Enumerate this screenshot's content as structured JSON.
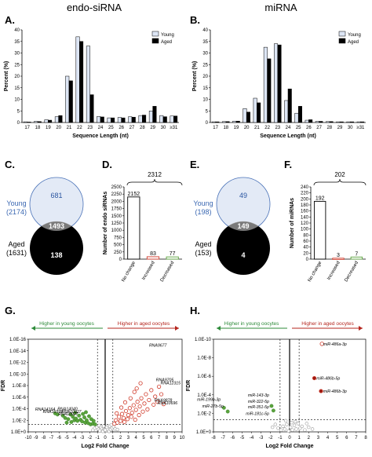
{
  "column_titles": {
    "left": "endo-siRNA",
    "right": "miRNA"
  },
  "panel_letters": {
    "A": "A.",
    "B": "B.",
    "C": "C.",
    "D": "D.",
    "E": "E.",
    "F": "F.",
    "G": "G.",
    "H": "H."
  },
  "colors": {
    "young": "#dde6f5",
    "aged": "#000000",
    "young_venn": "#e3eaf6",
    "overlap": "#7a7a7a",
    "increased": "#d03a2a",
    "decreased": "#5aa33c",
    "gray_points": "#9a9a9a",
    "young_arrow": "#2e8b3a",
    "aged_arrow": "#b5261e"
  },
  "chart_data": [
    {
      "id": "A",
      "type": "bar",
      "categories": [
        "17",
        "18",
        "19",
        "20",
        "21",
        "22",
        "23",
        "24",
        "25",
        "26",
        "27",
        "28",
        "29",
        "30",
        "≥31"
      ],
      "series": [
        {
          "name": "Young",
          "values": [
            0.3,
            0.5,
            1.2,
            2.5,
            20.0,
            37.0,
            33.0,
            2.6,
            2.0,
            2.2,
            2.5,
            3.0,
            5.0,
            3.0,
            2.8
          ]
        },
        {
          "name": "Aged",
          "values": [
            0.2,
            0.4,
            1.0,
            3.0,
            18.0,
            35.0,
            12.0,
            2.4,
            2.0,
            2.0,
            2.3,
            3.2,
            7.0,
            2.5,
            2.8
          ]
        }
      ],
      "xlabel": "Sequence Length (nt)",
      "ylabel": "Percent (%)",
      "yticks": [
        "0",
        "5",
        "10",
        "15",
        "20",
        "25",
        "30",
        "35",
        "40"
      ],
      "ylim": [
        0,
        40
      ],
      "legend": "top-right"
    },
    {
      "id": "B",
      "type": "bar",
      "categories": [
        "17",
        "18",
        "19",
        "20",
        "21",
        "22",
        "23",
        "24",
        "25",
        "26",
        "27",
        "28",
        "29",
        "30",
        "≥31"
      ],
      "series": [
        {
          "name": "Young",
          "values": [
            0.3,
            0.4,
            0.6,
            6.0,
            10.5,
            32.5,
            34.0,
            9.5,
            4.0,
            1.0,
            0.5,
            0.4,
            0.3,
            0.3,
            0.3
          ]
        },
        {
          "name": "Aged",
          "values": [
            0.3,
            0.4,
            0.6,
            4.5,
            8.5,
            27.5,
            33.5,
            14.5,
            7.0,
            1.2,
            0.5,
            0.4,
            0.3,
            0.3,
            0.3
          ]
        }
      ],
      "xlabel": "Sequence Length (nt)",
      "ylabel": "Percent (%)",
      "yticks": [
        "0",
        "5",
        "10",
        "15",
        "20",
        "25",
        "30",
        "35",
        "40"
      ],
      "ylim": [
        0,
        40
      ],
      "legend": "top-right"
    },
    {
      "id": "C",
      "type": "venn",
      "sets": [
        {
          "name": "Young",
          "count_label": "(2174)"
        },
        {
          "name": "Aged",
          "count_label": "(1631)"
        }
      ],
      "only_young": "681",
      "overlap": "1493",
      "only_aged": "138"
    },
    {
      "id": "D",
      "type": "bar",
      "categories": [
        "No change",
        "Increased",
        "Decreased"
      ],
      "values": [
        2152,
        83,
        77
      ],
      "value_labels": [
        "2152",
        "83",
        "77"
      ],
      "total_label": "2312",
      "ylabel": "Number of endo siRNAs",
      "yticks": [
        "0",
        "250",
        "500",
        "750",
        "1000",
        "1250",
        "1500",
        "1750",
        "2000",
        "2250",
        "2500"
      ],
      "ylim": [
        0,
        2500
      ]
    },
    {
      "id": "E",
      "type": "venn",
      "sets": [
        {
          "name": "Young",
          "count_label": "(198)"
        },
        {
          "name": "Aged",
          "count_label": "(153)"
        }
      ],
      "only_young": "49",
      "overlap": "149",
      "only_aged": "4"
    },
    {
      "id": "F",
      "type": "bar",
      "categories": [
        "No change",
        "Increased",
        "Decreased"
      ],
      "values": [
        192,
        3,
        7
      ],
      "value_labels": [
        "192",
        "3",
        "7"
      ],
      "total_label": "202",
      "ylabel": "Number of miRNAs",
      "yticks": [
        "0",
        "20",
        "40",
        "60",
        "80",
        "100",
        "120",
        "140",
        "160",
        "180",
        "200",
        "220",
        "240"
      ],
      "ylim": [
        0,
        240
      ]
    },
    {
      "id": "G",
      "type": "scatter",
      "xlabel": "Log2 Fold Change",
      "ylabel": "FDR",
      "left_arrow": "Higher in young oocytes",
      "right_arrow": "Higher in aged oocytes",
      "xlim": [
        -10,
        10
      ],
      "xticks": [
        "-10",
        "-9",
        "-8",
        "-7",
        "-6",
        "-5",
        "-4",
        "-3",
        "-2",
        "-1",
        "0",
        "1",
        "2",
        "3",
        "4",
        "5",
        "6",
        "7",
        "8",
        "9",
        "10"
      ],
      "ylim_neglog10": [
        0,
        16
      ],
      "yticks": [
        "1.0E+0",
        "1.0E-2",
        "1.0E-4",
        "1.0E-6",
        "1.0E-8",
        "1.0E-10",
        "1.0E-12",
        "1.0E-14",
        "1.0E-16"
      ],
      "annotations": [
        {
          "label": "RNA9677",
          "x": 5.3,
          "y": 15.0,
          "group": "aged"
        },
        {
          "label": "RNA9705",
          "x": 6.2,
          "y": 9.0,
          "group": "aged"
        },
        {
          "label": "RNA12315",
          "x": 6.8,
          "y": 8.5,
          "group": "aged"
        },
        {
          "label": "RNA9878",
          "x": 6.0,
          "y": 5.5,
          "group": "aged"
        },
        {
          "label": "RNA10696",
          "x": 6.4,
          "y": 5.0,
          "group": "aged"
        },
        {
          "label": "RNA14164",
          "x": -6.2,
          "y": 3.9,
          "group": "young"
        },
        {
          "label": "RNA10399",
          "x": -5.2,
          "y": 3.5,
          "group": "young"
        },
        {
          "label": "RNA14040",
          "x": -3.3,
          "y": 4.0,
          "group": "young"
        },
        {
          "label": "RNA10927",
          "x": -2.8,
          "y": 3.5,
          "group": "young"
        },
        {
          "label": "RNA10927",
          "x": -3.2,
          "y": 3.1,
          "group": "young"
        }
      ],
      "young_points": [
        [
          -6.5,
          3.2
        ],
        [
          -6.2,
          3.0
        ],
        [
          -5.5,
          2.8
        ],
        [
          -5.2,
          2.4
        ],
        [
          -4.8,
          2.2
        ],
        [
          -4.5,
          3.0
        ],
        [
          -4.2,
          2.6
        ],
        [
          -4.0,
          2.0
        ],
        [
          -3.8,
          2.3
        ],
        [
          -3.6,
          1.9
        ],
        [
          -3.4,
          2.8
        ],
        [
          -3.2,
          2.1
        ],
        [
          -3.0,
          1.8
        ],
        [
          -2.9,
          3.1
        ],
        [
          -2.7,
          2.5
        ],
        [
          -2.6,
          1.6
        ],
        [
          -2.4,
          2.0
        ],
        [
          -2.2,
          1.5
        ],
        [
          -2.1,
          2.7
        ],
        [
          -1.9,
          1.3
        ],
        [
          -1.8,
          2.2
        ],
        [
          -1.6,
          1.4
        ],
        [
          -1.5,
          1.9
        ],
        [
          -1.3,
          1.3
        ],
        [
          -4.4,
          1.7
        ],
        [
          -3.9,
          3.3
        ],
        [
          -5.0,
          1.6
        ],
        [
          -2.5,
          3.4
        ]
      ],
      "aged_points": [
        [
          1.2,
          1.4
        ],
        [
          1.4,
          2.0
        ],
        [
          1.6,
          1.6
        ],
        [
          1.8,
          2.6
        ],
        [
          2.0,
          1.9
        ],
        [
          2.2,
          3.1
        ],
        [
          2.4,
          2.4
        ],
        [
          2.5,
          1.7
        ],
        [
          2.7,
          3.6
        ],
        [
          2.9,
          2.2
        ],
        [
          3.0,
          2.9
        ],
        [
          3.2,
          4.1
        ],
        [
          3.4,
          2.6
        ],
        [
          3.5,
          3.3
        ],
        [
          3.7,
          4.6
        ],
        [
          3.9,
          2.1
        ],
        [
          4.0,
          3.8
        ],
        [
          4.2,
          5.2
        ],
        [
          4.4,
          2.9
        ],
        [
          4.5,
          4.4
        ],
        [
          4.7,
          5.8
        ],
        [
          4.9,
          3.5
        ],
        [
          5.1,
          4.9
        ],
        [
          5.3,
          6.5
        ],
        [
          5.5,
          3.9
        ],
        [
          5.7,
          5.5
        ],
        [
          6.0,
          7.2
        ],
        [
          6.3,
          4.7
        ],
        [
          6.5,
          6.1
        ],
        [
          6.8,
          5.2
        ],
        [
          7.0,
          7.8
        ],
        [
          7.3,
          6.5
        ],
        [
          7.6,
          4.8
        ],
        [
          1.5,
          3.2
        ],
        [
          2.1,
          4.2
        ],
        [
          2.6,
          5.1
        ],
        [
          3.3,
          5.8
        ],
        [
          3.8,
          6.9
        ],
        [
          4.1,
          7.5
        ],
        [
          4.6,
          8.4
        ]
      ],
      "gray_points": [
        [
          -0.9,
          0.5
        ],
        [
          -0.7,
          0.2
        ],
        [
          -0.5,
          0.6
        ],
        [
          -0.3,
          0.1
        ],
        [
          -0.1,
          0.4
        ],
        [
          0.1,
          0.2
        ],
        [
          0.3,
          0.5
        ],
        [
          0.5,
          0.1
        ],
        [
          0.7,
          0.4
        ],
        [
          0.9,
          0.7
        ],
        [
          -1.1,
          0.8
        ],
        [
          1.1,
          0.9
        ],
        [
          -0.6,
          0.9
        ],
        [
          0.6,
          1.0
        ],
        [
          -0.2,
          1.0
        ],
        [
          0.2,
          0.8
        ],
        [
          -1.4,
          0.6
        ],
        [
          1.3,
          0.5
        ],
        [
          0.0,
          0.3
        ],
        [
          -0.8,
          1.1
        ],
        [
          0.8,
          1.2
        ],
        [
          1.6,
          0.4
        ],
        [
          -1.6,
          0.3
        ]
      ]
    },
    {
      "id": "H",
      "type": "scatter",
      "xlabel": "Log2 Fold Change",
      "ylabel": "FDR",
      "left_arrow": "Higher in young oocytes",
      "right_arrow": "Higher in aged oocytes",
      "xlim": [
        -8,
        8
      ],
      "xticks": [
        "-8",
        "-7",
        "-6",
        "-5",
        "-4",
        "-3",
        "-2",
        "-1",
        "0",
        "1",
        "2",
        "3",
        "4",
        "5",
        "6",
        "7",
        "8"
      ],
      "ylim_neglog10": [
        0,
        10
      ],
      "yticks": [
        "1.0E+0",
        "1.0E-2",
        "1.0E-4",
        "1.0E-6",
        "1.0E-8",
        "1.0E-10"
      ],
      "annotations": [
        {
          "label": "miR-486a-3p",
          "x": 3.2,
          "y": 9.5,
          "group": "aged_open"
        },
        {
          "label": "miR-486b-5p",
          "x": 2.5,
          "y": 5.8,
          "group": "aged"
        },
        {
          "label": "miR-486b-3p",
          "x": 3.2,
          "y": 4.4,
          "group": "aged"
        },
        {
          "label": "miR-143-3p",
          "x": -1.9,
          "y": 4.0,
          "group": "young"
        },
        {
          "label": "miR-199b-3p",
          "x": -7.0,
          "y": 3.5,
          "group": "young"
        },
        {
          "label": "miR-27b-5p",
          "x": -6.7,
          "y": 2.8,
          "group": "young"
        },
        {
          "label": "miR-322-5p",
          "x": -1.9,
          "y": 3.3,
          "group": "young"
        },
        {
          "label": "miR-351-5p",
          "x": -1.9,
          "y": 2.7,
          "group": "young"
        },
        {
          "label": "miR-181c-5p",
          "x": -1.9,
          "y": 2.0,
          "group": "young"
        }
      ],
      "young_points": [
        [
          -6.9,
          2.6
        ],
        [
          -6.5,
          2.2
        ],
        [
          -1.9,
          2.8
        ],
        [
          -1.7,
          2.3
        ]
      ],
      "aged_points": [
        [
          2.6,
          5.8
        ],
        [
          3.3,
          4.4
        ]
      ],
      "aged_open_points": [
        [
          3.4,
          9.5
        ]
      ],
      "gray_points": [
        [
          -1.2,
          0.4
        ],
        [
          -0.9,
          0.2
        ],
        [
          -0.7,
          0.6
        ],
        [
          -0.5,
          0.3
        ],
        [
          -0.3,
          0.8
        ],
        [
          -0.1,
          0.1
        ],
        [
          0.1,
          0.5
        ],
        [
          0.3,
          0.2
        ],
        [
          0.5,
          0.7
        ],
        [
          0.7,
          0.3
        ],
        [
          0.9,
          0.9
        ],
        [
          1.1,
          0.4
        ],
        [
          1.3,
          0.6
        ],
        [
          1.6,
          0.2
        ],
        [
          2.0,
          0.5
        ],
        [
          -1.5,
          0.8
        ],
        [
          -1.8,
          0.5
        ],
        [
          0.2,
          1.0
        ],
        [
          -0.4,
          1.2
        ],
        [
          0.6,
          1.1
        ],
        [
          1.8,
          0.9
        ],
        [
          2.4,
          0.3
        ]
      ]
    }
  ]
}
